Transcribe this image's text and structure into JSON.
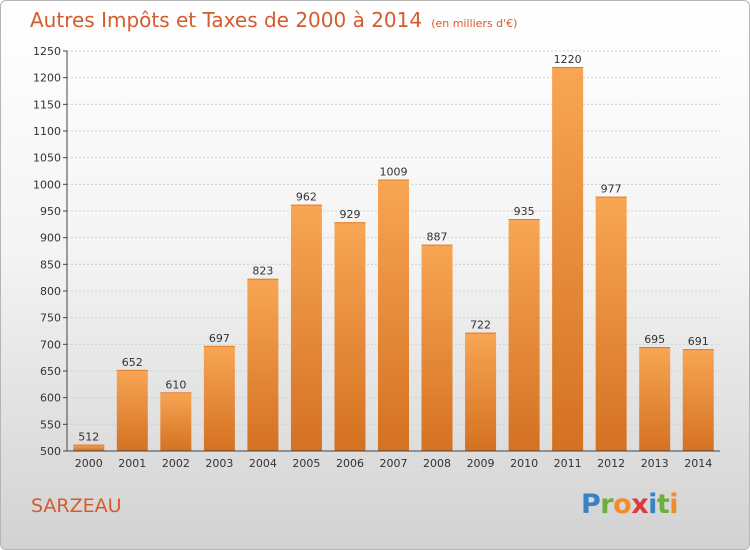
{
  "title": "Autres Impôts et Taxes de 2000 à 2014",
  "subtitle": "(en milliers d'€)",
  "city": "SARZEAU",
  "logo": {
    "letters": [
      "P",
      "r",
      "o",
      "x",
      "i",
      "t",
      "i"
    ],
    "colors": [
      "#3b82c4",
      "#6bb23c",
      "#f28c28",
      "#d93b3b",
      "#3b82c4",
      "#6bb23c",
      "#f28c28"
    ]
  },
  "colors": {
    "title": "#d55b2c",
    "bar_top": "#f8a654",
    "bar_bottom": "#d47122",
    "grid": "#d0d0d0"
  },
  "chart_data": {
    "type": "bar",
    "categories": [
      "2000",
      "2001",
      "2002",
      "2003",
      "2004",
      "2005",
      "2006",
      "2007",
      "2008",
      "2009",
      "2010",
      "2011",
      "2012",
      "2013",
      "2014"
    ],
    "values": [
      512,
      652,
      610,
      697,
      823,
      962,
      929,
      1009,
      887,
      722,
      935,
      1220,
      977,
      695,
      691
    ],
    "ylim": [
      500,
      1250
    ],
    "yticks": [
      500,
      550,
      600,
      650,
      700,
      750,
      800,
      850,
      900,
      950,
      1000,
      1050,
      1100,
      1150,
      1200,
      1250
    ],
    "grid": true,
    "data_labels": true
  }
}
